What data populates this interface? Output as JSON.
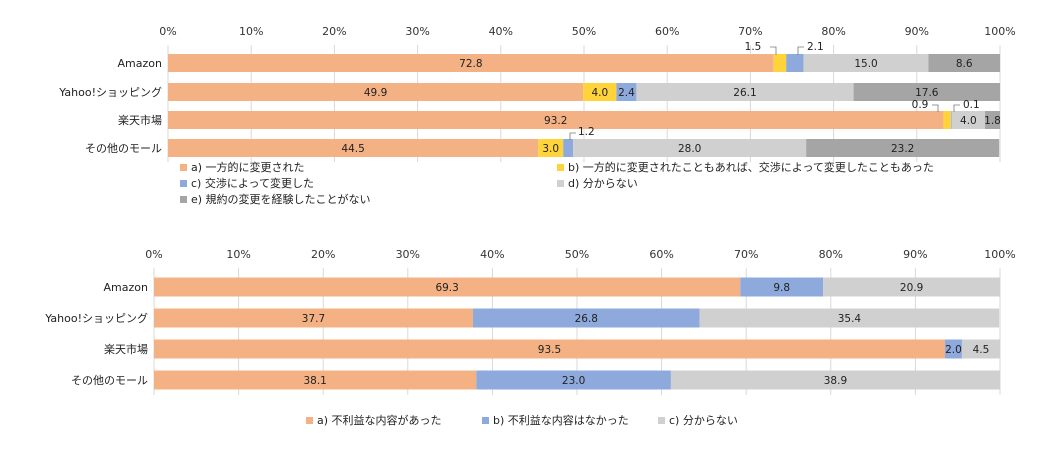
{
  "chart_data": [
    {
      "type": "bar",
      "orientation": "horizontal",
      "stacked": "percent",
      "xlim": [
        0,
        100
      ],
      "x_ticks": [
        "0%",
        "10%",
        "20%",
        "30%",
        "40%",
        "50%",
        "60%",
        "70%",
        "80%",
        "90%",
        "100%"
      ],
      "categories": [
        "Amazon",
        "Yahoo!ショッピング",
        "楽天市場",
        "その他のモール"
      ],
      "series": [
        {
          "name": "a) 一方的に変更された",
          "color": "#F4B183",
          "values": [
            72.8,
            49.9,
            93.2,
            44.5
          ]
        },
        {
          "name": "b) 一方的に変更されたこともあれば、交渉によって変更したこともあった",
          "color": "#FFD43B",
          "values": [
            1.5,
            4.0,
            0.9,
            3.0
          ]
        },
        {
          "name": "c) 交渉によって変更した",
          "color": "#8EA9DB",
          "values": [
            2.1,
            2.4,
            0.1,
            1.2
          ]
        },
        {
          "name": "d) 分からない",
          "color": "#D0D0D0",
          "values": [
            15.0,
            26.1,
            4.0,
            28.0
          ]
        },
        {
          "name": "e) 規約の変更を経験したことがない",
          "color": "#A5A5A5",
          "values": [
            8.6,
            17.6,
            1.8,
            23.2
          ]
        }
      ],
      "grid": true,
      "legend_position": "bottom"
    },
    {
      "type": "bar",
      "orientation": "horizontal",
      "stacked": "percent",
      "xlim": [
        0,
        100
      ],
      "x_ticks": [
        "0%",
        "10%",
        "20%",
        "30%",
        "40%",
        "50%",
        "60%",
        "70%",
        "80%",
        "90%",
        "100%"
      ],
      "categories": [
        "Amazon",
        "Yahoo!ショッピング",
        "楽天市場",
        "その他のモール"
      ],
      "series": [
        {
          "name": "a) 不利益な内容があった",
          "color": "#F4B183",
          "values": [
            69.3,
            37.7,
            93.5,
            38.1
          ]
        },
        {
          "name": "b) 不利益な内容はなかった",
          "color": "#8EA9DB",
          "values": [
            9.8,
            26.8,
            2.0,
            23.0
          ]
        },
        {
          "name": "c) 分からない",
          "color": "#D0D0D0",
          "values": [
            20.9,
            35.4,
            4.5,
            38.9
          ]
        }
      ],
      "grid": true,
      "legend_position": "bottom"
    }
  ]
}
